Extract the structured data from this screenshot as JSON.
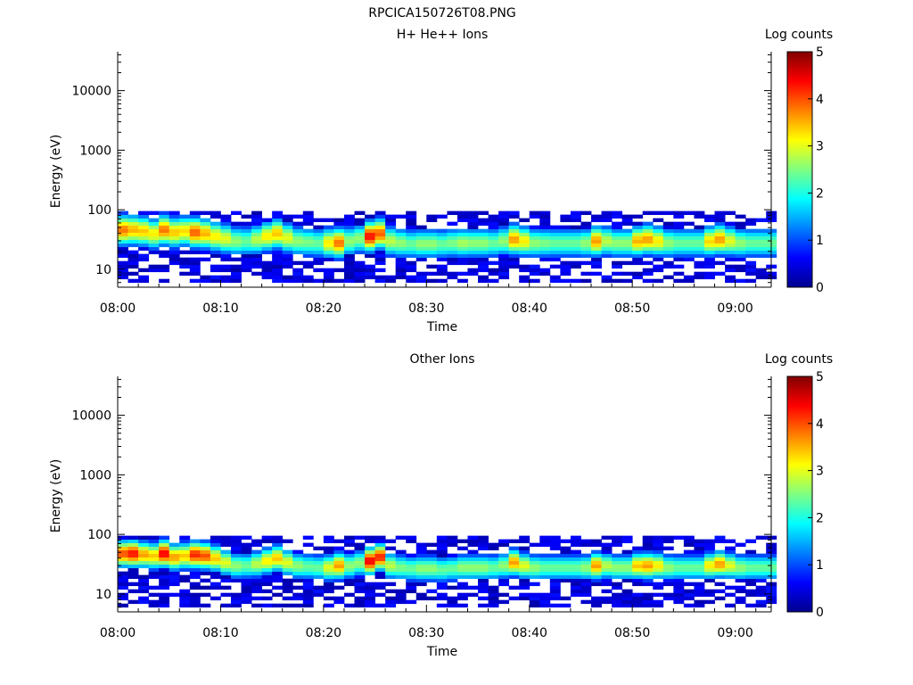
{
  "title": "RPCICA150726T08.PNG",
  "colormap": [
    "#00008f",
    "#0000ff",
    "#0080ff",
    "#00ffff",
    "#80ff80",
    "#ffff00",
    "#ff8000",
    "#ff0000",
    "#800000"
  ],
  "chart_data": [
    {
      "type": "heatmap",
      "title": "H+ He++ Ions",
      "xlabel": "Time",
      "ylabel": "Energy (eV)",
      "x_range_minutes": [
        0,
        63.5
      ],
      "xticks": [
        {
          "minute": 0,
          "label": "08:00"
        },
        {
          "minute": 10,
          "label": "08:10"
        },
        {
          "minute": 20,
          "label": "08:20"
        },
        {
          "minute": 30,
          "label": "08:30"
        },
        {
          "minute": 40,
          "label": "08:40"
        },
        {
          "minute": 50,
          "label": "08:50"
        },
        {
          "minute": 60,
          "label": "09:00"
        }
      ],
      "yscale": "log",
      "ylim": [
        5,
        45000
      ],
      "yticks": [
        {
          "value": 10,
          "label": "10"
        },
        {
          "value": 100,
          "label": "100"
        },
        {
          "value": 1000,
          "label": "1000"
        },
        {
          "value": 10000,
          "label": "10000"
        }
      ],
      "colorbar": {
        "label": "Log counts",
        "range": [
          0,
          5
        ],
        "ticks": [
          "0",
          "1",
          "2",
          "3",
          "4",
          "5"
        ]
      },
      "bins": {
        "energy_min_eV": 6,
        "energy_max_eV": 95,
        "num_energy_bins": 20,
        "time_bin_minutes": 1,
        "num_time_bins": 64
      },
      "profile": {
        "peak_energy_eV": [
          46,
          46,
          44,
          40,
          46,
          42,
          44,
          42,
          40,
          36,
          33,
          30,
          30,
          32,
          36,
          40,
          34,
          30,
          29,
          28,
          28,
          28,
          30,
          33,
          36,
          40,
          30,
          28,
          27,
          27,
          27,
          27,
          28,
          28,
          28,
          28,
          28,
          30,
          32,
          30,
          28,
          28,
          28,
          28,
          28,
          28,
          30,
          30,
          28,
          28,
          30,
          32,
          30,
          28,
          28,
          28,
          28,
          30,
          32,
          30,
          28,
          28,
          28,
          28
        ],
        "peak_log_counts": [
          3.8,
          3.5,
          3.4,
          3.2,
          3.8,
          3.4,
          3.3,
          3.9,
          3.5,
          3.2,
          3.0,
          2.6,
          2.4,
          2.8,
          3.2,
          3.4,
          3.0,
          2.6,
          2.5,
          2.4,
          3.2,
          3.8,
          2.6,
          2.6,
          4.3,
          3.9,
          2.8,
          2.6,
          2.4,
          2.6,
          2.6,
          2.4,
          2.5,
          2.7,
          2.6,
          2.6,
          2.4,
          2.6,
          3.6,
          3.2,
          2.6,
          2.5,
          2.4,
          2.4,
          2.4,
          2.6,
          3.6,
          2.8,
          2.6,
          2.6,
          3.5,
          3.6,
          3.2,
          2.6,
          2.4,
          2.4,
          2.4,
          3.3,
          3.6,
          3.0,
          2.6,
          2.4,
          2.4,
          2.4
        ],
        "width_decades": 0.17
      }
    },
    {
      "type": "heatmap",
      "title": "Other Ions",
      "xlabel": "Time",
      "ylabel": "Energy (eV)",
      "x_range_minutes": [
        0,
        63.5
      ],
      "xticks": [
        {
          "minute": 0,
          "label": "08:00"
        },
        {
          "minute": 10,
          "label": "08:10"
        },
        {
          "minute": 20,
          "label": "08:20"
        },
        {
          "minute": 30,
          "label": "08:30"
        },
        {
          "minute": 40,
          "label": "08:40"
        },
        {
          "minute": 50,
          "label": "08:50"
        },
        {
          "minute": 60,
          "label": "09:00"
        }
      ],
      "yscale": "log",
      "ylim": [
        5,
        45000
      ],
      "yticks": [
        {
          "value": 10,
          "label": "10"
        },
        {
          "value": 100,
          "label": "100"
        },
        {
          "value": 1000,
          "label": "1000"
        },
        {
          "value": 10000,
          "label": "10000"
        }
      ],
      "colorbar": {
        "label": "Log counts",
        "range": [
          0,
          5
        ],
        "ticks": [
          "0",
          "1",
          "2",
          "3",
          "4",
          "5"
        ]
      },
      "bins": {
        "energy_min_eV": 6,
        "energy_max_eV": 95,
        "num_energy_bins": 20,
        "time_bin_minutes": 1,
        "num_time_bins": 64
      },
      "profile": {
        "peak_energy_eV": [
          48,
          48,
          46,
          44,
          48,
          42,
          44,
          46,
          44,
          40,
          34,
          30,
          30,
          32,
          36,
          40,
          34,
          30,
          29,
          28,
          28,
          30,
          30,
          33,
          36,
          42,
          30,
          28,
          27,
          27,
          27,
          26,
          27,
          28,
          28,
          28,
          28,
          30,
          34,
          30,
          28,
          28,
          28,
          28,
          28,
          28,
          30,
          30,
          28,
          28,
          30,
          30,
          30,
          28,
          28,
          28,
          28,
          30,
          32,
          30,
          28,
          28,
          28,
          28
        ],
        "peak_log_counts": [
          4.0,
          4.3,
          3.6,
          3.4,
          4.4,
          3.6,
          3.4,
          4.2,
          4.0,
          3.4,
          3.0,
          2.6,
          2.4,
          2.8,
          3.2,
          3.4,
          3.0,
          2.6,
          2.4,
          2.4,
          3.0,
          3.6,
          2.6,
          2.6,
          4.4,
          4.2,
          2.8,
          2.5,
          2.4,
          2.6,
          2.6,
          2.4,
          2.4,
          2.6,
          2.6,
          2.6,
          2.4,
          2.6,
          3.6,
          3.0,
          2.6,
          2.4,
          2.4,
          2.4,
          2.4,
          2.6,
          3.6,
          2.8,
          2.6,
          2.6,
          3.4,
          3.6,
          3.2,
          2.6,
          2.4,
          2.4,
          2.4,
          3.2,
          3.6,
          3.0,
          2.6,
          2.4,
          2.4,
          2.4
        ],
        "width_decades": 0.15
      }
    }
  ]
}
